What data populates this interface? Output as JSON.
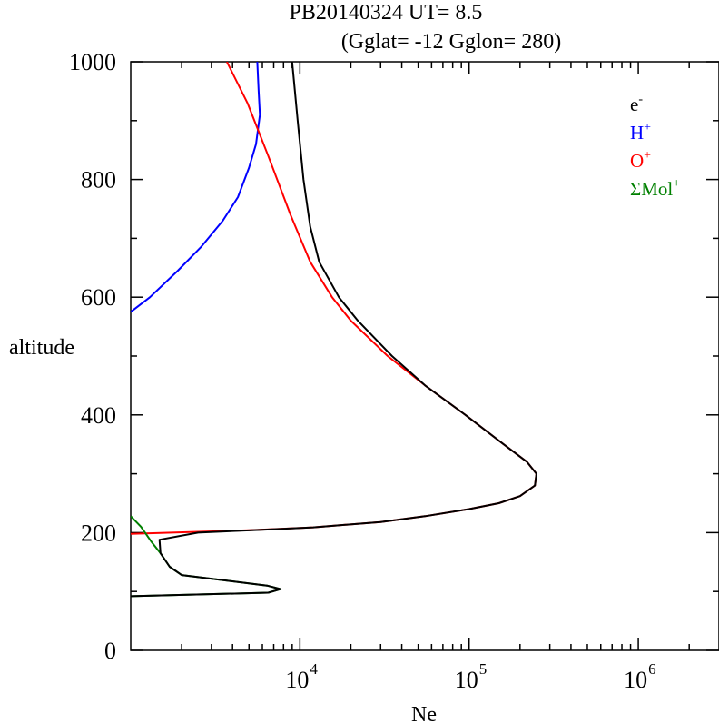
{
  "chart_data": {
    "type": "line",
    "title": "PB20140324   UT=  8.5",
    "subtitle": "(Gglat= -12   Gglon=  280)",
    "xlabel": "Ne",
    "ylabel": "altitude",
    "xscale": "log",
    "xlim": [
      1000,
      3000000
    ],
    "ylim": [
      0,
      1000
    ],
    "x_ticks": [
      {
        "value": 10000,
        "base": "10",
        "exp": "4"
      },
      {
        "value": 100000,
        "base": "10",
        "exp": "5"
      },
      {
        "value": 1000000,
        "base": "10",
        "exp": "6"
      }
    ],
    "y_ticks": [
      0,
      200,
      400,
      600,
      800,
      1000
    ],
    "grid": false,
    "legend_position": "top-right",
    "series": [
      {
        "name": "e",
        "sup": "-",
        "color": "#000000",
        "points": [
          [
            1000,
            92
          ],
          [
            6500,
            98
          ],
          [
            7700,
            104
          ],
          [
            6400,
            110
          ],
          [
            2000,
            128
          ],
          [
            1700,
            142
          ],
          [
            1500,
            165
          ],
          [
            1480,
            188
          ],
          [
            2500,
            200
          ],
          [
            6000,
            205
          ],
          [
            12000,
            209
          ],
          [
            30000,
            218
          ],
          [
            55000,
            228
          ],
          [
            100000,
            240
          ],
          [
            150000,
            250
          ],
          [
            200000,
            262
          ],
          [
            245000,
            280
          ],
          [
            250000,
            300
          ],
          [
            220000,
            320
          ],
          [
            160000,
            350
          ],
          [
            95000,
            400
          ],
          [
            55000,
            450
          ],
          [
            35000,
            500
          ],
          [
            22000,
            560
          ],
          [
            17000,
            600
          ],
          [
            13000,
            660
          ],
          [
            11500,
            720
          ],
          [
            10500,
            800
          ],
          [
            9700,
            900
          ],
          [
            9000,
            1000
          ]
        ]
      },
      {
        "name": "H",
        "sup": "+",
        "color": "#0000ff",
        "points": [
          [
            1000,
            575
          ],
          [
            1300,
            600
          ],
          [
            1900,
            645
          ],
          [
            2600,
            685
          ],
          [
            3500,
            730
          ],
          [
            4300,
            770
          ],
          [
            5000,
            820
          ],
          [
            5500,
            860
          ],
          [
            5800,
            910
          ],
          [
            5700,
            950
          ],
          [
            5600,
            1000
          ]
        ]
      },
      {
        "name": "O",
        "sup": "+",
        "color": "#ff0000",
        "points": [
          [
            1000,
            198
          ],
          [
            5000,
            204
          ],
          [
            12000,
            209
          ],
          [
            30000,
            218
          ],
          [
            55000,
            228
          ],
          [
            100000,
            240
          ],
          [
            150000,
            250
          ],
          [
            200000,
            262
          ],
          [
            245000,
            280
          ],
          [
            250000,
            300
          ],
          [
            220000,
            320
          ],
          [
            160000,
            350
          ],
          [
            95000,
            400
          ],
          [
            55000,
            450
          ],
          [
            33000,
            500
          ],
          [
            20000,
            560
          ],
          [
            15500,
            600
          ],
          [
            11500,
            660
          ],
          [
            8800,
            740
          ],
          [
            6500,
            840
          ],
          [
            4900,
            930
          ],
          [
            3700,
            1000
          ]
        ]
      },
      {
        "name": "ΣMol",
        "sup": "+",
        "color": "#008000",
        "points": [
          [
            1000,
            228
          ],
          [
            1150,
            210
          ],
          [
            1320,
            185
          ],
          [
            1500,
            165
          ],
          [
            1700,
            142
          ],
          [
            2000,
            128
          ],
          [
            6400,
            110
          ],
          [
            7700,
            104
          ],
          [
            6500,
            98
          ],
          [
            1000,
            92
          ]
        ]
      }
    ]
  }
}
